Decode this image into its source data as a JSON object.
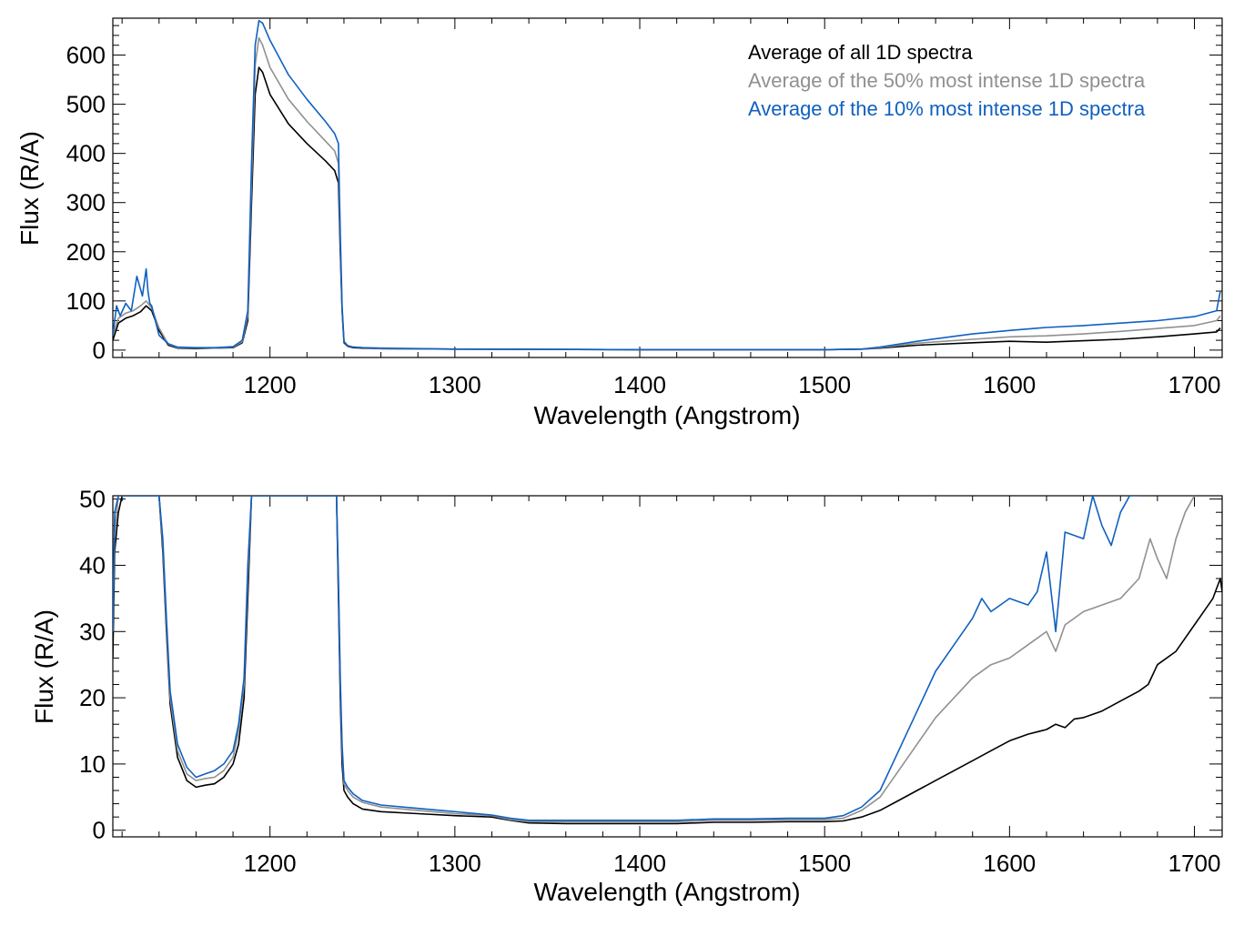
{
  "colors": {
    "all": "#000000",
    "top50": "#909090",
    "top10": "#1060c0"
  },
  "legend": {
    "all": "Average of all 1D spectra",
    "top50": "Average of the 50% most intense 1D spectra",
    "top10": "Average of the 10% most intense 1D spectra"
  },
  "chart_data": [
    {
      "type": "line",
      "xlabel": "Wavelength (Angstrom)",
      "ylabel": "Flux (R/A)",
      "xlim": [
        1115,
        1715
      ],
      "ylim": [
        -15,
        675
      ],
      "xticks": [
        1200,
        1300,
        1400,
        1500,
        1600,
        1700
      ],
      "yticks": [
        0,
        100,
        200,
        300,
        400,
        500,
        600
      ],
      "legend_position": "top-right",
      "series": [
        {
          "name": "Average of all 1D spectra",
          "color_key": "all",
          "x": [
            1115,
            1118,
            1122,
            1126,
            1130,
            1133,
            1136,
            1140,
            1145,
            1150,
            1160,
            1170,
            1180,
            1185,
            1188,
            1190,
            1192,
            1194,
            1196,
            1200,
            1210,
            1220,
            1230,
            1235,
            1237,
            1238,
            1239,
            1240,
            1242,
            1245,
            1250,
            1260,
            1300,
            1400,
            1500,
            1520,
            1530,
            1550,
            1580,
            1600,
            1620,
            1640,
            1660,
            1680,
            1700,
            1712,
            1714
          ],
          "y": [
            20,
            55,
            65,
            70,
            78,
            90,
            80,
            40,
            10,
            4,
            3,
            4,
            5,
            15,
            60,
            300,
            520,
            575,
            565,
            520,
            460,
            420,
            385,
            365,
            340,
            200,
            80,
            15,
            8,
            5,
            4,
            3,
            2,
            1,
            1,
            2,
            4,
            10,
            15,
            18,
            16,
            19,
            22,
            27,
            33,
            37,
            45
          ]
        },
        {
          "name": "Average of the 50% most intense 1D spectra",
          "color_key": "top50",
          "x": [
            1115,
            1118,
            1122,
            1126,
            1130,
            1133,
            1136,
            1140,
            1145,
            1150,
            1160,
            1170,
            1180,
            1185,
            1188,
            1190,
            1192,
            1194,
            1196,
            1200,
            1210,
            1220,
            1230,
            1235,
            1237,
            1238,
            1239,
            1240,
            1242,
            1245,
            1250,
            1260,
            1300,
            1400,
            1500,
            1520,
            1530,
            1550,
            1580,
            1600,
            1620,
            1640,
            1660,
            1680,
            1700,
            1712,
            1714
          ],
          "y": [
            30,
            65,
            75,
            80,
            90,
            100,
            85,
            45,
            12,
            5,
            4,
            4,
            6,
            17,
            70,
            340,
            580,
            635,
            620,
            575,
            510,
            465,
            425,
            405,
            380,
            220,
            85,
            17,
            9,
            6,
            5,
            3,
            2,
            1,
            1,
            2,
            5,
            14,
            22,
            27,
            29,
            33,
            38,
            44,
            50,
            60,
            70
          ]
        },
        {
          "name": "Average of the 10% most intense 1D spectra",
          "color_key": "top10",
          "x": [
            1115,
            1117,
            1119,
            1122,
            1125,
            1128,
            1131,
            1133,
            1134,
            1135,
            1136,
            1138,
            1140,
            1145,
            1150,
            1160,
            1170,
            1180,
            1185,
            1188,
            1190,
            1192,
            1194,
            1196,
            1200,
            1210,
            1220,
            1230,
            1235,
            1237,
            1238,
            1239,
            1240,
            1242,
            1245,
            1250,
            1260,
            1300,
            1400,
            1500,
            1520,
            1530,
            1550,
            1580,
            1600,
            1620,
            1640,
            1660,
            1680,
            1700,
            1712,
            1714
          ],
          "y": [
            30,
            90,
            70,
            95,
            80,
            150,
            110,
            165,
            120,
            95,
            90,
            60,
            30,
            13,
            6,
            5,
            5,
            7,
            20,
            80,
            380,
            620,
            670,
            665,
            630,
            560,
            510,
            465,
            440,
            420,
            240,
            90,
            18,
            9,
            6,
            5,
            4,
            2,
            1,
            1,
            2,
            6,
            18,
            33,
            40,
            46,
            50,
            55,
            60,
            68,
            80,
            120
          ]
        }
      ]
    },
    {
      "type": "line",
      "xlabel": "Wavelength (Angstrom)",
      "ylabel": "Flux (R/A)",
      "xlim": [
        1115,
        1715
      ],
      "ylim": [
        -1,
        50.5
      ],
      "xticks": [
        1200,
        1300,
        1400,
        1500,
        1600,
        1700
      ],
      "yticks": [
        0,
        10,
        20,
        30,
        40,
        50
      ],
      "series": [
        {
          "name": "Average of all 1D spectra",
          "color_key": "all",
          "x": [
            1115,
            1116,
            1118,
            1120,
            1122,
            1125,
            1130,
            1135,
            1140,
            1142,
            1144,
            1146,
            1150,
            1155,
            1160,
            1165,
            1170,
            1175,
            1180,
            1183,
            1186,
            1188,
            1190,
            1236,
            1237,
            1238,
            1239,
            1240,
            1242,
            1245,
            1250,
            1260,
            1280,
            1300,
            1320,
            1330,
            1340,
            1360,
            1380,
            1400,
            1420,
            1440,
            1460,
            1480,
            1500,
            1510,
            1520,
            1530,
            1540,
            1550,
            1560,
            1570,
            1580,
            1590,
            1600,
            1610,
            1620,
            1625,
            1630,
            1635,
            1640,
            1650,
            1660,
            1670,
            1675,
            1680,
            1690,
            1700,
            1705,
            1710,
            1712,
            1714,
            1715
          ],
          "y": [
            26,
            42,
            48,
            50.5,
            50.5,
            50.5,
            50.5,
            50.5,
            50.5,
            42,
            30,
            19,
            11,
            7.5,
            6.5,
            6.8,
            7,
            8,
            10,
            13,
            20,
            35,
            50.5,
            50.5,
            35,
            20,
            10,
            6,
            5,
            4,
            3.2,
            2.8,
            2.5,
            2.2,
            2,
            1.5,
            1.1,
            1,
            1,
            1,
            1,
            1.2,
            1.2,
            1.3,
            1.3,
            1.4,
            2,
            3,
            4.5,
            6,
            7.5,
            9,
            10.5,
            12,
            13.5,
            14.5,
            15.2,
            16,
            15.5,
            16.8,
            17,
            18,
            19.5,
            21,
            22,
            25,
            27,
            31,
            33,
            35,
            36.5,
            38,
            36
          ]
        },
        {
          "name": "Average of the 50% most intense 1D spectra",
          "color_key": "top50",
          "x": [
            1115,
            1116,
            1118,
            1120,
            1122,
            1125,
            1130,
            1135,
            1140,
            1142,
            1144,
            1146,
            1150,
            1155,
            1160,
            1165,
            1170,
            1175,
            1180,
            1183,
            1186,
            1188,
            1190,
            1236,
            1237,
            1238,
            1239,
            1240,
            1242,
            1245,
            1250,
            1260,
            1280,
            1300,
            1320,
            1330,
            1340,
            1360,
            1380,
            1400,
            1420,
            1440,
            1460,
            1480,
            1500,
            1510,
            1520,
            1530,
            1540,
            1550,
            1560,
            1570,
            1580,
            1590,
            1600,
            1610,
            1620,
            1625,
            1630,
            1640,
            1650,
            1660,
            1670,
            1676,
            1680,
            1685,
            1690,
            1695,
            1700
          ],
          "y": [
            30,
            45,
            50.5,
            50.5,
            50.5,
            50.5,
            50.5,
            50.5,
            50.5,
            43,
            31,
            20,
            12,
            8.5,
            7.5,
            7.8,
            8,
            9,
            11,
            15,
            22,
            38,
            50.5,
            50.5,
            37,
            22,
            12,
            7,
            6,
            5,
            4.2,
            3.5,
            3,
            2.5,
            2.2,
            1.6,
            1.3,
            1.3,
            1.3,
            1.3,
            1.3,
            1.5,
            1.5,
            1.6,
            1.6,
            1.8,
            3,
            5,
            9,
            13,
            17,
            20,
            23,
            25,
            26,
            28,
            30,
            27,
            31,
            33,
            34,
            35,
            38,
            44,
            41,
            38,
            44,
            48,
            50.5
          ]
        },
        {
          "name": "Average of the 10% most intense 1D spectra",
          "color_key": "top10",
          "x": [
            1115,
            1116,
            1118,
            1120,
            1122,
            1125,
            1130,
            1135,
            1140,
            1142,
            1144,
            1146,
            1150,
            1155,
            1160,
            1165,
            1170,
            1175,
            1180,
            1183,
            1186,
            1188,
            1190,
            1236,
            1237,
            1238,
            1239,
            1240,
            1242,
            1245,
            1250,
            1260,
            1280,
            1300,
            1320,
            1330,
            1340,
            1360,
            1380,
            1400,
            1420,
            1440,
            1460,
            1480,
            1500,
            1510,
            1520,
            1530,
            1540,
            1550,
            1560,
            1570,
            1580,
            1585,
            1590,
            1600,
            1610,
            1615,
            1620,
            1625,
            1630,
            1640,
            1645,
            1650,
            1655,
            1660,
            1665,
            1670
          ],
          "y": [
            30,
            48,
            50.5,
            50.5,
            50.5,
            50.5,
            50.5,
            50.5,
            50.5,
            44,
            32,
            21,
            13,
            9.5,
            8,
            8.5,
            9,
            10,
            12,
            16,
            23,
            40,
            50.5,
            50.5,
            38,
            23,
            13,
            7.5,
            6.5,
            5.5,
            4.5,
            3.8,
            3.3,
            2.8,
            2.3,
            1.8,
            1.5,
            1.5,
            1.5,
            1.5,
            1.5,
            1.7,
            1.7,
            1.8,
            1.8,
            2.2,
            3.5,
            6,
            12,
            18,
            24,
            28,
            32,
            35,
            33,
            35,
            34,
            36,
            42,
            30,
            45,
            44,
            50.5,
            46,
            43,
            48,
            50.5,
            50.5
          ]
        }
      ]
    }
  ]
}
